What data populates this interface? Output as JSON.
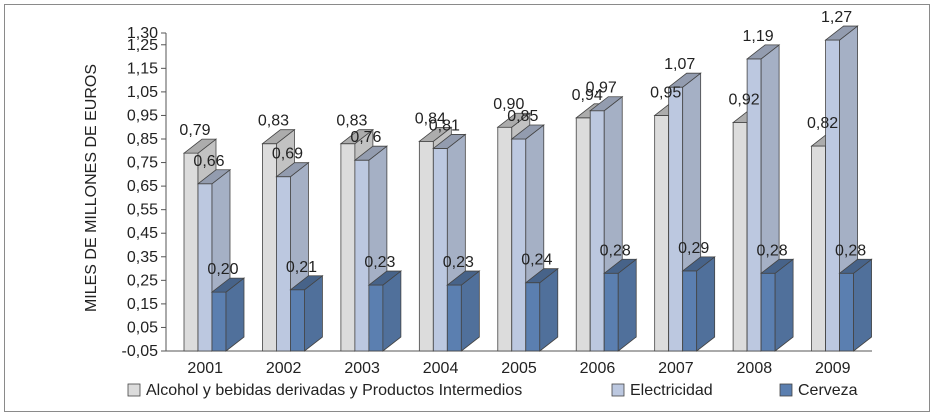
{
  "chart_data": {
    "type": "bar",
    "title": "",
    "xlabel": "",
    "ylabel": "MILES DE MILLONES DE EUROS",
    "categories": [
      "2001",
      "2002",
      "2003",
      "2004",
      "2005",
      "2006",
      "2007",
      "2008",
      "2009"
    ],
    "y_ticks": [
      "-0,05",
      "0,05",
      "0,15",
      "0,25",
      "0,35",
      "0,45",
      "0,55",
      "0,65",
      "0,75",
      "0,85",
      "0,95",
      "1,05",
      "1,15",
      "1,25",
      "1,30"
    ],
    "ylim": [
      -0.05,
      1.3
    ],
    "grid": false,
    "legend": "bottom",
    "series": [
      {
        "name": "Alcohol y bebidas derivadas y Productos Intermedios",
        "values": [
          0.79,
          0.83,
          0.83,
          0.84,
          0.9,
          0.94,
          0.95,
          0.92,
          0.82
        ],
        "labels": [
          "0,79",
          "0,83",
          "0,83",
          "0,84",
          "0,90",
          "0,94",
          "0,95",
          "0,92",
          "0,82"
        ],
        "color": "#dcdcdc"
      },
      {
        "name": "Electricidad",
        "values": [
          0.66,
          0.69,
          0.76,
          0.81,
          0.85,
          0.97,
          1.07,
          1.19,
          1.27
        ],
        "labels": [
          "0,66",
          "0,69",
          "0,76",
          "0,81",
          "0,85",
          "0,97",
          "1,07",
          "1,19",
          "1,27"
        ],
        "color": "#bcc8e0"
      },
      {
        "name": "Cerveza",
        "values": [
          0.2,
          0.21,
          0.23,
          0.23,
          0.24,
          0.28,
          0.29,
          0.28,
          0.28
        ],
        "labels": [
          "0,20",
          "0,21",
          "0,23",
          "0,23",
          "0,24",
          "0,28",
          "0,29",
          "0,28",
          "0,28"
        ],
        "color": "#5b7fb0"
      }
    ]
  }
}
